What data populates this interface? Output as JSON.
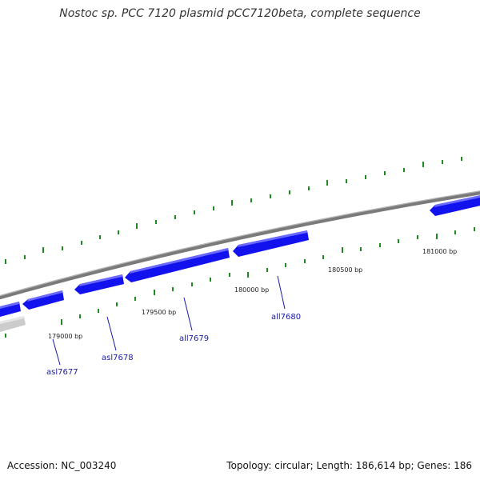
{
  "title": "Nostoc sp. PCC 7120 plasmid pCC7120beta, complete sequence",
  "footer": {
    "accession": "Accession: NC_003240",
    "stats": "Topology: circular; Length: 186,614 bp; Genes: 186"
  },
  "colors": {
    "backbone": "#7a7a7a",
    "backbone_faded": "#cccccc",
    "gene_fill": "#1212ee",
    "gene_highlight": "#6a6aff",
    "tick": "#1f8a1f",
    "gene_label": "#1a1aa8"
  },
  "scale_labels": [
    "179000 bp",
    "179500 bp",
    "180000 bp",
    "180500 bp",
    "181000 bp"
  ],
  "genes": [
    {
      "name": "asl7677",
      "strand": "-"
    },
    {
      "name": "asl7678",
      "strand": "-"
    },
    {
      "name": "all7679",
      "strand": "-"
    },
    {
      "name": "all7680",
      "strand": "-"
    }
  ]
}
